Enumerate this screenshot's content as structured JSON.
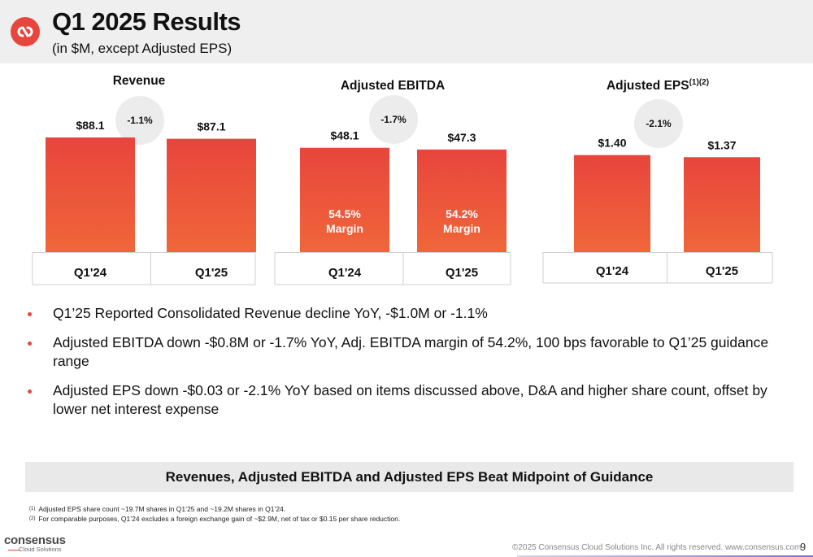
{
  "header": {
    "title": "Q1 2025 Results",
    "subtitle": "(in $M, except Adjusted EPS)",
    "logo_icon": "consensus-logo-icon"
  },
  "colors": {
    "bar": "#e8453c",
    "bar_light": "#f0663a",
    "accent": "#e8453c",
    "bubble": "#ececec"
  },
  "chart_data": [
    {
      "type": "bar",
      "title": "Revenue",
      "categories": [
        "Q1'24",
        "Q1'25"
      ],
      "values": [
        88.1,
        87.1
      ],
      "value_labels": [
        "$88.1",
        "$87.1"
      ],
      "change_label": "-1.1%",
      "ylim": [
        0,
        100
      ]
    },
    {
      "type": "bar",
      "title": "Adjusted EBITDA",
      "categories": [
        "Q1'24",
        "Q1'25"
      ],
      "values": [
        48.1,
        47.3
      ],
      "value_labels": [
        "$48.1",
        "$47.3"
      ],
      "inner_labels": [
        [
          "54.5%",
          "Margin"
        ],
        [
          "54.2%",
          "Margin"
        ]
      ],
      "change_label": "-1.7%",
      "ylim": [
        0,
        54
      ]
    },
    {
      "type": "bar",
      "title": "Adjusted EPS",
      "title_superscript": "(1)(2)",
      "categories": [
        "Q1'24",
        "Q1'25"
      ],
      "values": [
        1.4,
        1.37
      ],
      "value_labels": [
        "$1.40",
        "$1.37"
      ],
      "change_label": "-2.1%",
      "ylim": [
        0,
        1.62
      ]
    }
  ],
  "bullets": [
    "Q1’25 Reported Consolidated Revenue decline YoY, -$1.0M or -1.1%",
    "Adjusted EBITDA down -$0.8M or -1.7% YoY, Adj. EBITDA margin of 54.2%, 100 bps favorable to Q1’25 guidance range",
    "Adjusted EPS down -$0.03 or -2.1% YoY based on items discussed above, D&A and higher share count, offset by lower net interest expense"
  ],
  "banner": "Revenues, Adjusted EBITDA and Adjusted EPS Beat Midpoint of Guidance",
  "footnotes": [
    {
      "marker": "(1)",
      "text": "Adjusted EPS share count ~19.7M shares in Q1’25 and ~19.2M shares in Q1’24."
    },
    {
      "marker": "(2)",
      "text": "For comparable purposes, Q1’24 excludes a foreign exchange gain of ~$2.9M, net of tax or $0.15 per share reduction."
    }
  ],
  "footer": {
    "brand_name": "consensus",
    "brand_sub": "Cloud Solutions",
    "copyright": "©2025 Consensus Cloud Solutions Inc. All rights reserved. www.consensus.com",
    "page_number": "9"
  }
}
